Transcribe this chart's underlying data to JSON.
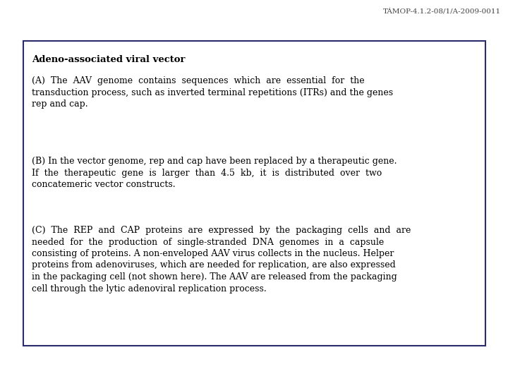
{
  "header_text": "TÁMOP-4.1.2-08/1/A-2009-0011",
  "title": "Adeno-associated viral vector",
  "para_A": "(A)  The  AAV  genome  contains  sequences  which  are  essential  for  the\ntransduction process, such as inverted terminal repetitions (ITRs) and the genes\nrep and cap.",
  "para_B": "(B) In the vector genome, rep and cap have been replaced by a therapeutic gene.\nIf  the  therapeutic  gene  is  larger  than  4.5  kb,  it  is  distributed  over  two\nconcatemeric vector constructs.",
  "para_C": "(C)  The  REP  and  CAP  proteins  are  expressed  by  the  packaging  cells  and  are\nneeded  for  the  production  of  single-stranded  DNA  genomes  in  a  capsule\nconsisting of proteins. A non-enveloped AAV virus collects in the nucleus. Helper\nproteins from adenoviruses, which are needed for replication, are also expressed\nin the packaging cell (not shown here). The AAV are released from the packaging\ncell through the lytic adenoviral replication process.",
  "bg_color": "#ffffff",
  "text_color": "#000000",
  "header_color": "#444444",
  "box_edge_color": "#2b2b6b",
  "font_size_header": 7.5,
  "font_size_title": 9.5,
  "font_size_body": 9.0
}
